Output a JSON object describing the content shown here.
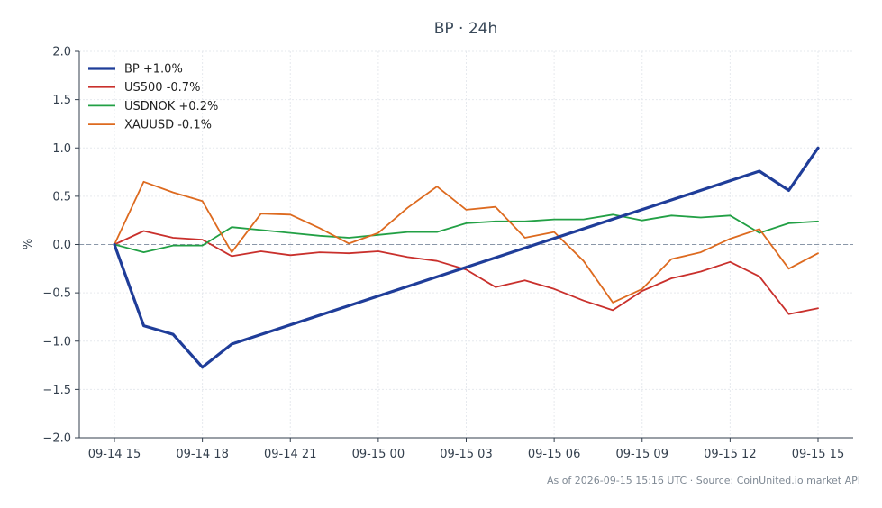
{
  "title": "BP · 24h",
  "footer": "As of 2026-09-15 15:16 UTC · Source: CoinUnited.io market API",
  "chart_data": {
    "type": "line",
    "title": "BP · 24h",
    "xlabel": "",
    "ylabel": "%",
    "ylim": [
      -2.0,
      2.0
    ],
    "yticks": [
      -2.0,
      -1.5,
      -1.0,
      -0.5,
      0.0,
      0.5,
      1.0,
      1.5,
      2.0
    ],
    "ytick_labels": [
      "−2.0",
      "−1.5",
      "−1.0",
      "−0.5",
      "0.0",
      "0.5",
      "1.0",
      "1.5",
      "2.0"
    ],
    "xlim": [
      0,
      24
    ],
    "xticks": [
      0,
      3,
      6,
      9,
      12,
      15,
      18,
      21,
      24
    ],
    "xtick_labels": [
      "09-14 15",
      "09-14 18",
      "09-14 21",
      "09-15 00",
      "09-15 03",
      "09-15 06",
      "09-15 09",
      "09-15 12",
      "09-15 15"
    ],
    "x": [
      0,
      1,
      2,
      3,
      4,
      5,
      6,
      7,
      8,
      9,
      10,
      11,
      12,
      13,
      14,
      15,
      16,
      17,
      18,
      19,
      20,
      21,
      22,
      23,
      24
    ],
    "grid": true,
    "zero_line": true,
    "legend_position": "top-left",
    "series": [
      {
        "name": "BP +1.0%",
        "color": "#1f3d99",
        "width": 3.2,
        "points": [
          [
            0,
            0.0
          ],
          [
            1,
            -0.84
          ],
          [
            2,
            -0.93
          ],
          [
            3,
            -1.27
          ],
          [
            4,
            -1.03
          ],
          [
            24,
            1.0
          ]
        ],
        "values_at": "points",
        "extra": [
          [
            23,
            0.56
          ],
          [
            22,
            0.76
          ]
        ]
      },
      {
        "name": "US500 -0.7%",
        "color": "#c9302c",
        "width": 1.8,
        "values": [
          0.0,
          0.14,
          0.07,
          0.05,
          -0.12,
          -0.07,
          -0.11,
          -0.08,
          -0.09,
          -0.07,
          -0.13,
          -0.17,
          -0.26,
          -0.44,
          -0.37,
          -0.46,
          -0.58,
          -0.68,
          -0.48,
          -0.35,
          -0.28,
          -0.18,
          -0.33,
          -0.72,
          -0.66
        ]
      },
      {
        "name": "USDNOK +0.2%",
        "color": "#22a045",
        "width": 1.8,
        "values": [
          0.0,
          -0.08,
          -0.01,
          -0.01,
          0.18,
          0.15,
          0.12,
          0.09,
          0.07,
          0.1,
          0.13,
          0.13,
          0.22,
          0.24,
          0.24,
          0.26,
          0.26,
          0.31,
          0.25,
          0.3,
          0.28,
          0.3,
          0.12,
          0.22,
          0.24
        ]
      },
      {
        "name": "XAUUSD -0.1%",
        "color": "#dd6a1f",
        "width": 1.8,
        "values": [
          0.0,
          0.65,
          0.54,
          0.45,
          -0.08,
          0.32,
          0.31,
          0.17,
          0.01,
          0.12,
          0.38,
          0.6,
          0.36,
          0.39,
          0.07,
          0.13,
          -0.17,
          -0.6,
          -0.46,
          -0.15,
          -0.08,
          0.06,
          0.16,
          -0.25,
          -0.09
        ]
      }
    ]
  }
}
